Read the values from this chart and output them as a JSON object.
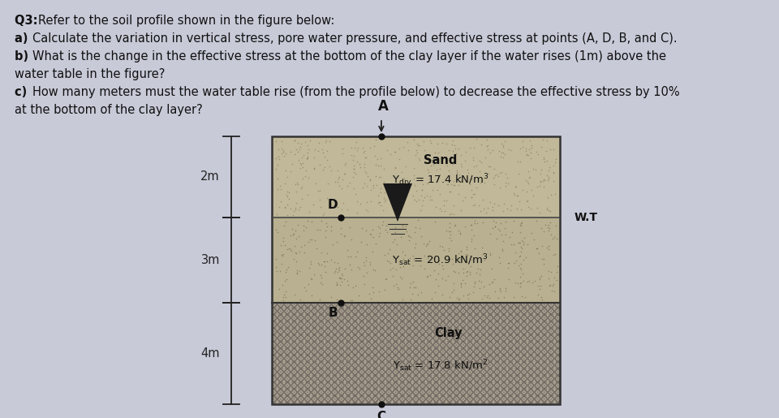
{
  "bg_color": "#c8cad8",
  "text_color": "#111111",
  "question_lines": [
    [
      "Q3: ",
      "Refer to the soil profile shown in the figure below:"
    ],
    [
      "a) ",
      "Calculate the variation in vertical stress, pore water pressure, and effective stress at points (A, D, B, and C)."
    ],
    [
      "b) ",
      "What is the change in the effective stress at the bottom of the clay layer if the water rises (1m) above the"
    ],
    [
      "",
      "water table in the figure?"
    ],
    [
      "c) ",
      "How many meters must the water table rise (from the profile below) to decrease the effective stress by 10%"
    ],
    [
      "",
      "at the bottom of the clay layer?"
    ]
  ],
  "sand_dry_color": "#c0b898",
  "sand_sat_color": "#b8b090",
  "clay_color": "#a8a090",
  "border_color": "#333333",
  "dim_color": "#222222",
  "wt_color": "#444444",
  "label_WT": "W.T",
  "label_Sand": "Sand",
  "label_Clay": "Clay",
  "label_ydry": "Ydry = 17.4 kN/m",
  "label_ysat_sand": "Ysat = 20.9 kN/m",
  "label_ysat_clay": "Ysat = 17.8 kN/m",
  "label_2m": "2m",
  "label_3m": "3m",
  "label_4m": "4m"
}
